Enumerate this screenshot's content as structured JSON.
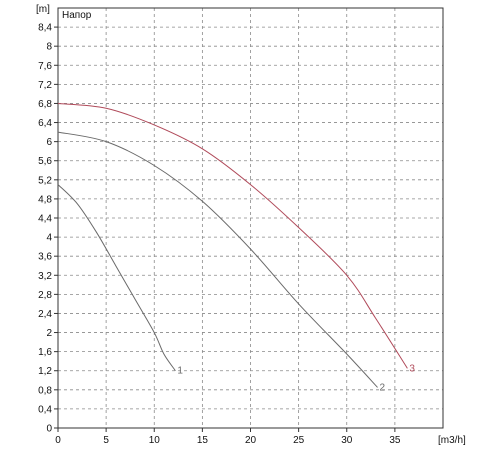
{
  "chart_data": {
    "type": "line",
    "legend_title": "Напор",
    "x_unit": "[m3/h]",
    "y_unit": "[m]",
    "xlim": [
      0,
      40
    ],
    "ylim": [
      0,
      8.8
    ],
    "grid": true,
    "grid_style": "dashed",
    "x_ticks": [
      0,
      5,
      10,
      15,
      20,
      25,
      30,
      35
    ],
    "y_ticks": [
      "0",
      "0,4",
      "0,8",
      "1,2",
      "1,6",
      "2",
      "2,4",
      "2,8",
      "3,2",
      "3,6",
      "4",
      "4,4",
      "4,8",
      "5,2",
      "5,6",
      "6",
      "6,4",
      "6,8",
      "7,2",
      "7,6",
      "8",
      "8,4"
    ],
    "y_tick_values": [
      0,
      0.4,
      0.8,
      1.2,
      1.6,
      2,
      2.4,
      2.8,
      3.2,
      3.6,
      4,
      4.4,
      4.8,
      5.2,
      5.6,
      6,
      6.4,
      6.8,
      7.2,
      7.6,
      8,
      8.4
    ],
    "series": [
      {
        "name": "1",
        "color": "#6a6a6a",
        "x": [
          0,
          2,
          4,
          6,
          8,
          10,
          11,
          12.2
        ],
        "y": [
          5.1,
          4.7,
          4.1,
          3.4,
          2.7,
          2.0,
          1.55,
          1.2
        ]
      },
      {
        "name": "2",
        "color": "#6a6a6a",
        "x": [
          0,
          5,
          10,
          15,
          20,
          25,
          30,
          33.2
        ],
        "y": [
          6.2,
          6.0,
          5.5,
          4.75,
          3.75,
          2.6,
          1.55,
          0.85
        ]
      },
      {
        "name": "3",
        "color": "#b04a5a",
        "x": [
          0,
          5,
          10,
          15,
          20,
          25,
          30,
          33,
          36.3
        ],
        "y": [
          6.8,
          6.7,
          6.35,
          5.85,
          5.1,
          4.2,
          3.2,
          2.3,
          1.25
        ]
      }
    ]
  }
}
